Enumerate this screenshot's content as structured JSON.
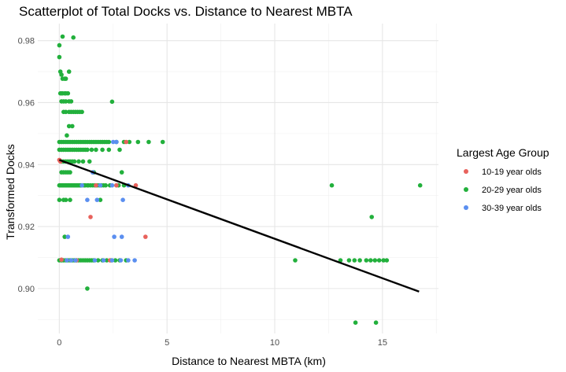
{
  "chart_data": {
    "type": "scatter",
    "title": "Scatterplot of Total Docks vs. Distance to Nearest MBTA",
    "xlabel": "Distance to Nearest MBTA (km)",
    "ylabel": "Transformed Docks",
    "xlim": [
      -1.0,
      17.6
    ],
    "ylim": [
      0.8855,
      0.9855
    ],
    "x_ticks": [
      0,
      5,
      10,
      15
    ],
    "x_tick_labels": [
      "0",
      "5",
      "10",
      "15"
    ],
    "y_ticks": [
      0.9,
      0.92,
      0.94,
      0.96,
      0.98
    ],
    "y_tick_labels": [
      "0.90",
      "0.92",
      "0.94",
      "0.96",
      "0.98"
    ],
    "grid": true,
    "legend": {
      "title": "Largest Age Group",
      "position": "right",
      "entries": [
        "10-19 year olds",
        "20-29 year olds",
        "30-39 year olds"
      ]
    },
    "colors": {
      "10-19 year olds": "#e8625c",
      "20-29 year olds": "#22b03c",
      "30-39 year olds": "#5b8ff0"
    },
    "trend_line": {
      "type": "linear",
      "color": "#000000",
      "points": [
        [
          0.0,
          0.9415
        ],
        [
          16.7,
          0.899
        ]
      ]
    },
    "series": [
      {
        "name": "20-29 year olds",
        "points": [
          [
            0.0,
            0.9785
          ],
          [
            0.0,
            0.9747
          ],
          [
            0.05,
            0.97
          ],
          [
            0.1,
            0.969
          ],
          [
            0.15,
            0.9677
          ],
          [
            0.25,
            0.9677
          ],
          [
            0.3,
            0.9677
          ],
          [
            0.05,
            0.963
          ],
          [
            0.1,
            0.963
          ],
          [
            0.15,
            0.963
          ],
          [
            0.25,
            0.963
          ],
          [
            0.3,
            0.963
          ],
          [
            0.4,
            0.963
          ],
          [
            0.1,
            0.9604
          ],
          [
            0.2,
            0.9604
          ],
          [
            0.3,
            0.9604
          ],
          [
            0.45,
            0.9604
          ],
          [
            0.55,
            0.9604
          ],
          [
            0.2,
            0.957
          ],
          [
            0.3,
            0.957
          ],
          [
            0.45,
            0.957
          ],
          [
            0.55,
            0.957
          ],
          [
            0.65,
            0.957
          ],
          [
            0.75,
            0.957
          ],
          [
            0.85,
            0.957
          ],
          [
            0.95,
            0.957
          ],
          [
            1.05,
            0.957
          ],
          [
            0.45,
            0.9524
          ],
          [
            0.6,
            0.9524
          ],
          [
            0.35,
            0.9494
          ],
          [
            0.65,
            0.981
          ],
          [
            2.45,
            0.9603
          ],
          [
            0.15,
            0.9813
          ],
          [
            0.45,
            0.97
          ],
          [
            0.0,
            0.9473
          ],
          [
            0.1,
            0.9473
          ],
          [
            0.2,
            0.9473
          ],
          [
            0.3,
            0.9473
          ],
          [
            0.4,
            0.9473
          ],
          [
            0.5,
            0.9473
          ],
          [
            0.6,
            0.9473
          ],
          [
            0.7,
            0.9473
          ],
          [
            0.8,
            0.9473
          ],
          [
            0.9,
            0.9473
          ],
          [
            1.0,
            0.9473
          ],
          [
            1.1,
            0.9473
          ],
          [
            1.2,
            0.9473
          ],
          [
            1.3,
            0.9473
          ],
          [
            1.4,
            0.9473
          ],
          [
            1.5,
            0.9473
          ],
          [
            1.6,
            0.9473
          ],
          [
            1.7,
            0.9473
          ],
          [
            1.8,
            0.9473
          ],
          [
            1.9,
            0.9473
          ],
          [
            2.0,
            0.9473
          ],
          [
            2.1,
            0.9473
          ],
          [
            2.2,
            0.9473
          ],
          [
            2.3,
            0.9473
          ],
          [
            2.65,
            0.9473
          ],
          [
            3.0,
            0.9473
          ],
          [
            3.25,
            0.9473
          ],
          [
            3.65,
            0.9473
          ],
          [
            4.15,
            0.9473
          ],
          [
            4.8,
            0.9473
          ],
          [
            0.0,
            0.9448
          ],
          [
            0.1,
            0.9448
          ],
          [
            0.2,
            0.9448
          ],
          [
            0.3,
            0.9448
          ],
          [
            0.4,
            0.9448
          ],
          [
            0.5,
            0.9448
          ],
          [
            0.6,
            0.9448
          ],
          [
            0.7,
            0.9448
          ],
          [
            0.8,
            0.9448
          ],
          [
            0.9,
            0.9448
          ],
          [
            1.0,
            0.9448
          ],
          [
            1.1,
            0.9448
          ],
          [
            1.2,
            0.9448
          ],
          [
            1.3,
            0.9448
          ],
          [
            1.5,
            0.9448
          ],
          [
            1.7,
            0.9448
          ],
          [
            2.0,
            0.9448
          ],
          [
            2.3,
            0.9448
          ],
          [
            2.8,
            0.9448
          ],
          [
            0.1,
            0.941
          ],
          [
            0.2,
            0.941
          ],
          [
            0.3,
            0.941
          ],
          [
            0.4,
            0.941
          ],
          [
            0.5,
            0.941
          ],
          [
            0.6,
            0.941
          ],
          [
            0.7,
            0.941
          ],
          [
            0.9,
            0.941
          ],
          [
            1.1,
            0.941
          ],
          [
            1.4,
            0.941
          ],
          [
            0.1,
            0.9375
          ],
          [
            0.2,
            0.9375
          ],
          [
            0.3,
            0.9375
          ],
          [
            0.4,
            0.9375
          ],
          [
            0.5,
            0.9375
          ],
          [
            1.6,
            0.9375
          ],
          [
            2.9,
            0.9375
          ],
          [
            0.0,
            0.9333
          ],
          [
            0.05,
            0.9333
          ],
          [
            0.1,
            0.9333
          ],
          [
            0.15,
            0.9333
          ],
          [
            0.2,
            0.9333
          ],
          [
            0.25,
            0.9333
          ],
          [
            0.3,
            0.9333
          ],
          [
            0.35,
            0.9333
          ],
          [
            0.4,
            0.9333
          ],
          [
            0.45,
            0.9333
          ],
          [
            0.5,
            0.9333
          ],
          [
            0.55,
            0.9333
          ],
          [
            0.6,
            0.9333
          ],
          [
            0.65,
            0.9333
          ],
          [
            0.7,
            0.9333
          ],
          [
            0.75,
            0.9333
          ],
          [
            0.8,
            0.9333
          ],
          [
            0.85,
            0.9333
          ],
          [
            0.9,
            0.9333
          ],
          [
            0.95,
            0.9333
          ],
          [
            1.0,
            0.9333
          ],
          [
            1.05,
            0.9333
          ],
          [
            1.15,
            0.9333
          ],
          [
            1.2,
            0.9333
          ],
          [
            1.3,
            0.9333
          ],
          [
            1.35,
            0.9333
          ],
          [
            1.45,
            0.9333
          ],
          [
            1.55,
            0.9333
          ],
          [
            1.65,
            0.9333
          ],
          [
            1.75,
            0.9333
          ],
          [
            1.85,
            0.9333
          ],
          [
            1.95,
            0.9333
          ],
          [
            2.05,
            0.9333
          ],
          [
            2.15,
            0.9333
          ],
          [
            2.35,
            0.9333
          ],
          [
            2.65,
            0.9333
          ],
          [
            2.75,
            0.9333
          ],
          [
            3.0,
            0.9333
          ],
          [
            12.65,
            0.9333
          ],
          [
            16.75,
            0.9333
          ],
          [
            0.0,
            0.9286
          ],
          [
            0.2,
            0.9286
          ],
          [
            0.3,
            0.9286
          ],
          [
            0.5,
            0.9286
          ],
          [
            1.9,
            0.9286
          ],
          [
            14.5,
            0.9231
          ],
          [
            0.25,
            0.9167
          ],
          [
            0.0,
            0.9091
          ],
          [
            0.1,
            0.9091
          ],
          [
            0.2,
            0.9091
          ],
          [
            0.3,
            0.9091
          ],
          [
            0.4,
            0.9091
          ],
          [
            0.5,
            0.9091
          ],
          [
            0.6,
            0.9091
          ],
          [
            0.7,
            0.9091
          ],
          [
            0.8,
            0.9091
          ],
          [
            0.9,
            0.9091
          ],
          [
            1.0,
            0.9091
          ],
          [
            1.1,
            0.9091
          ],
          [
            1.2,
            0.9091
          ],
          [
            1.3,
            0.9091
          ],
          [
            1.4,
            0.9091
          ],
          [
            1.5,
            0.9091
          ],
          [
            1.6,
            0.9091
          ],
          [
            1.8,
            0.9091
          ],
          [
            2.0,
            0.9091
          ],
          [
            2.2,
            0.9091
          ],
          [
            2.4,
            0.9091
          ],
          [
            2.6,
            0.9091
          ],
          [
            2.8,
            0.9091
          ],
          [
            3.1,
            0.9091
          ],
          [
            10.95,
            0.9091
          ],
          [
            13.05,
            0.9091
          ],
          [
            13.45,
            0.9091
          ],
          [
            13.7,
            0.9091
          ],
          [
            13.95,
            0.9091
          ],
          [
            14.25,
            0.9091
          ],
          [
            14.45,
            0.9091
          ],
          [
            14.65,
            0.9091
          ],
          [
            14.85,
            0.9091
          ],
          [
            15.05,
            0.9091
          ],
          [
            15.2,
            0.9091
          ],
          [
            1.3,
            0.9
          ],
          [
            13.75,
            0.889
          ],
          [
            14.7,
            0.889
          ]
        ]
      },
      {
        "name": "10-19 year olds",
        "points": [
          [
            0.0,
            0.9415
          ],
          [
            0.05,
            0.941
          ],
          [
            0.1,
            0.9093
          ],
          [
            1.45,
            0.9231
          ],
          [
            2.35,
            0.9091
          ],
          [
            2.65,
            0.9333
          ],
          [
            3.55,
            0.9333
          ],
          [
            4.0,
            0.9167
          ],
          [
            3.1,
            0.9473
          ],
          [
            0.8,
            0.9091
          ],
          [
            1.7,
            0.9333
          ]
        ]
      },
      {
        "name": "30-39 year olds",
        "points": [
          [
            0.4,
            0.9167
          ],
          [
            0.35,
            0.9091
          ],
          [
            0.55,
            0.9091
          ],
          [
            0.75,
            0.9091
          ],
          [
            1.65,
            0.9091
          ],
          [
            2.05,
            0.9091
          ],
          [
            2.45,
            0.9091
          ],
          [
            2.85,
            0.9091
          ],
          [
            3.2,
            0.9091
          ],
          [
            3.5,
            0.9091
          ],
          [
            1.3,
            0.9286
          ],
          [
            1.75,
            0.9286
          ],
          [
            2.55,
            0.9167
          ],
          [
            2.9,
            0.9167
          ],
          [
            2.95,
            0.9286
          ],
          [
            1.05,
            0.9333
          ],
          [
            1.9,
            0.9333
          ],
          [
            2.45,
            0.9333
          ],
          [
            3.2,
            0.9333
          ],
          [
            2.5,
            0.9473
          ],
          [
            2.65,
            0.9473
          ],
          [
            1.55,
            0.9375
          ]
        ]
      }
    ]
  }
}
